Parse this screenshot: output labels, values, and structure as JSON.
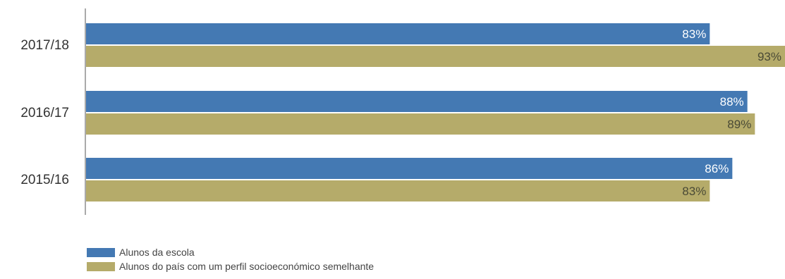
{
  "chart_data": {
    "type": "bar",
    "orientation": "horizontal",
    "categories": [
      "2017/18",
      "2016/17",
      "2015/16"
    ],
    "series": [
      {
        "name": "Alunos da escola",
        "color": "#4479b3",
        "label_color": "#ffffff",
        "values": [
          83,
          88,
          86
        ],
        "labels": [
          "83%",
          "88%",
          "86%"
        ]
      },
      {
        "name": "Alunos do país com um perfil socioeconómico semelhante",
        "color": "#b5ab6a",
        "label_color": "#4a4a36",
        "values": [
          93,
          89,
          83
        ],
        "labels": [
          "93%",
          "89%",
          "83%"
        ]
      }
    ],
    "xlim": [
      0,
      93
    ],
    "grid": false,
    "legend_position": "bottom-left"
  }
}
